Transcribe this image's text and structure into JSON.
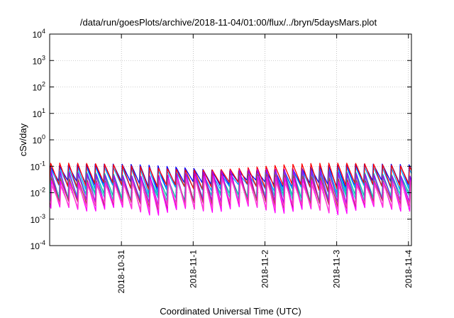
{
  "chart_data": {
    "type": "line",
    "title": "/data/run/goesPlots/archive/2018-11-04/01:00/flux/../bryn/5daysMars.plot",
    "xlabel": "Coordinated Universal Time (UTC)",
    "ylabel": "cSv/day",
    "x_range": [
      "2018-10-30T00:00",
      "2018-11-04T01:00"
    ],
    "x_ticks": [
      "2018-10-31",
      "2018-11-1",
      "2018-11-2",
      "2018-11-3",
      "2018-11-4"
    ],
    "x_tick_dates": [
      "2018-10-31",
      "2018-11-01",
      "2018-11-02",
      "2018-11-03",
      "2018-11-04"
    ],
    "y_scale": "log",
    "ylim": [
      0.0001,
      10000
    ],
    "y_ticks": [
      {
        "base": "10",
        "exp": "4"
      },
      {
        "base": "10",
        "exp": "3"
      },
      {
        "base": "10",
        "exp": "2"
      },
      {
        "base": "10",
        "exp": "1"
      },
      {
        "base": "10",
        "exp": "0"
      },
      {
        "base": "10",
        "exp": "-1"
      },
      {
        "base": "10",
        "exp": "-2"
      },
      {
        "base": "10",
        "exp": "-3"
      },
      {
        "base": "10",
        "exp": "-4"
      }
    ],
    "grid": true,
    "legend": "none",
    "cycle_hours": 3,
    "series": [
      {
        "color": "#0000ff",
        "peak": 0.11,
        "trough": 0.022
      },
      {
        "color": "#00a0ff",
        "peak": 0.085,
        "trough": 0.015
      },
      {
        "color": "#ff0000",
        "peak": 0.12,
        "trough": 0.018
      },
      {
        "color": "#00c0a0",
        "peak": 0.06,
        "trough": 0.007
      },
      {
        "color": "#20e0c0",
        "peak": 0.05,
        "trough": 0.006
      },
      {
        "color": "#a000ff",
        "peak": 0.07,
        "trough": 0.004
      },
      {
        "color": "#b04040",
        "peak": 0.045,
        "trough": 0.0035
      },
      {
        "color": "#ff00ff",
        "peak": 0.04,
        "trough": 0.0022
      },
      {
        "color": "#ff40d0",
        "peak": 0.03,
        "trough": 0.003
      }
    ]
  }
}
